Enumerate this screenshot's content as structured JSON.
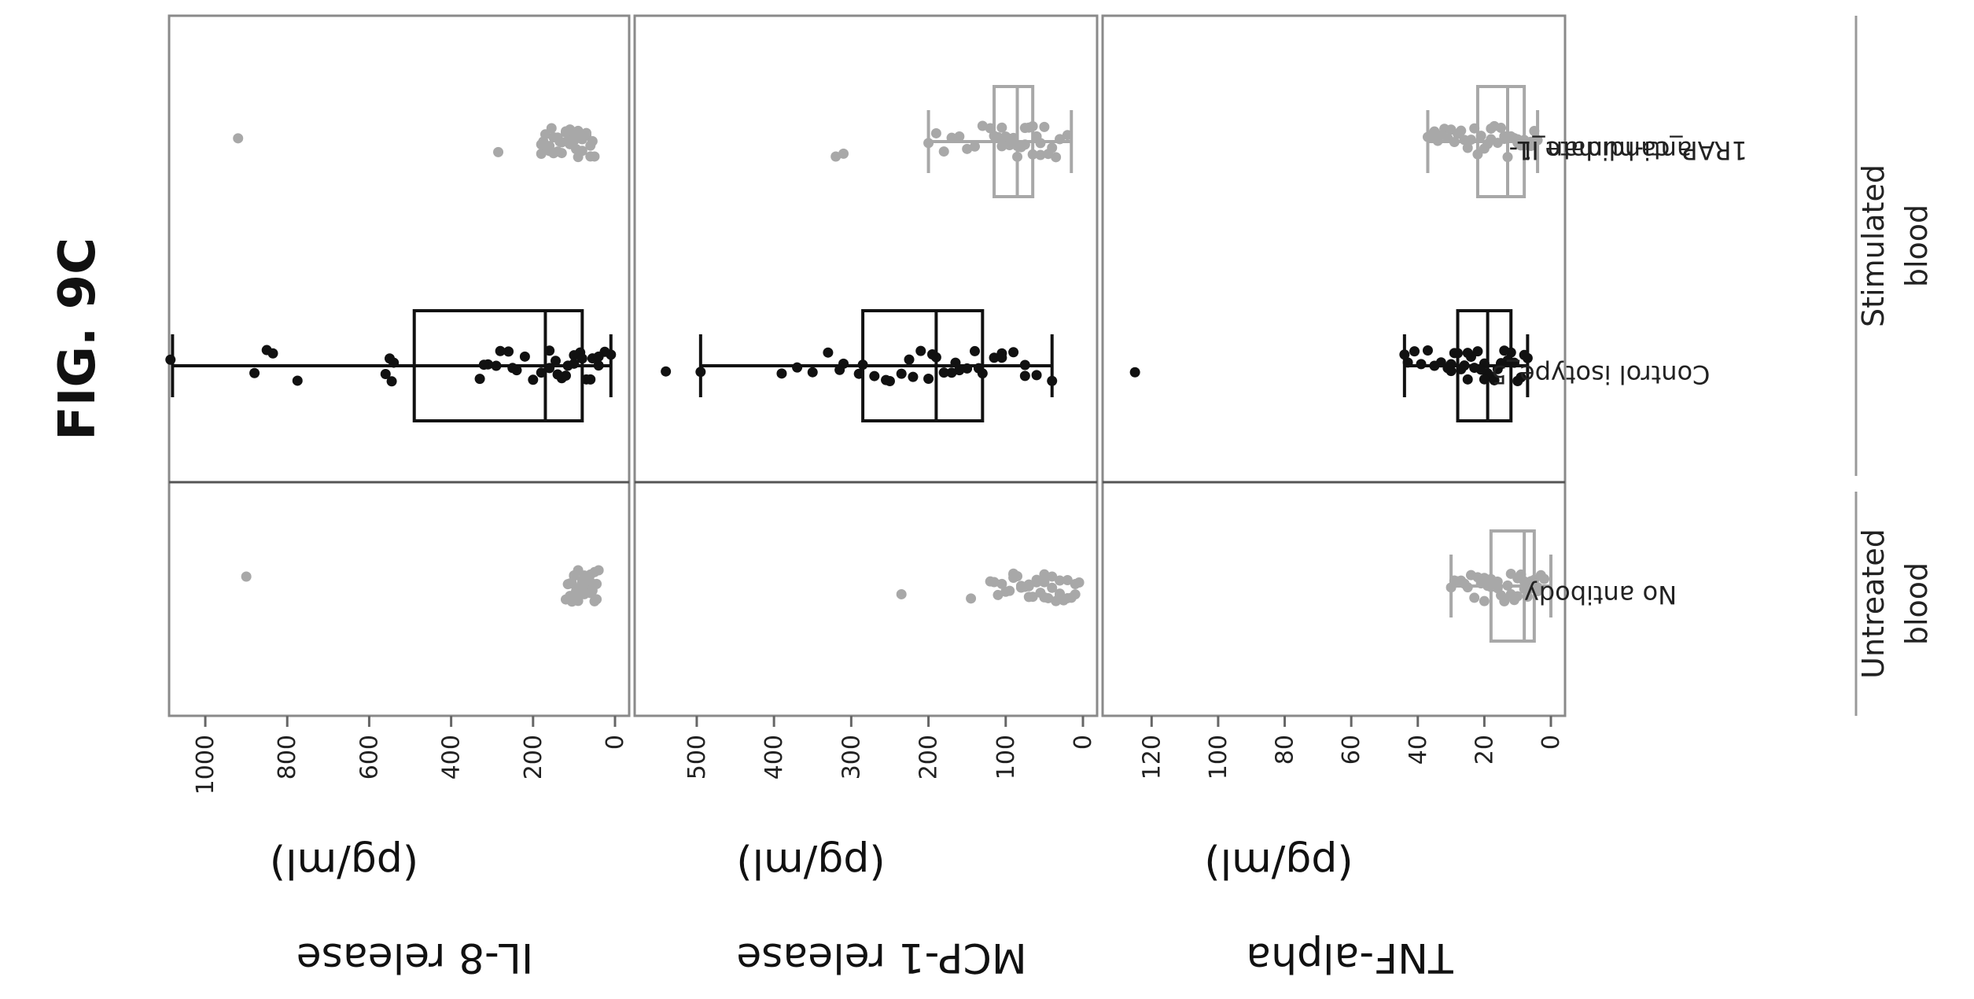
{
  "figure": {
    "title": "FIG. 9C"
  },
  "chart_data": {
    "type": "box",
    "orientation": "rotated",
    "groups": [
      {
        "name": "Untreated blood",
        "categories": [
          "No antibody"
        ]
      },
      {
        "name": "Stimulated blood",
        "categories": [
          "Control isotype_5",
          "anti-human IL-1RAP_candidate_1"
        ]
      }
    ],
    "categories": [
      "No antibody",
      "Control isotype_5",
      "anti-human IL-1RAP_candidate_1"
    ],
    "category_colors": [
      "#a8a8a8",
      "#111111",
      "#a8a8a8"
    ],
    "panels": [
      {
        "ylabel": "IL-8 release",
        "unit": "(pg/ml)",
        "ylim": [
          0,
          1050
        ],
        "ticks": [
          0,
          200,
          400,
          600,
          800,
          1000
        ],
        "series": [
          {
            "category": "No antibody",
            "box": null,
            "points": [
              40,
              45,
              50,
              55,
              60,
              65,
              70,
              75,
              80,
              85,
              90,
              95,
              100,
              105,
              110,
              115,
              120,
              45,
              55,
              65,
              75,
              85,
              95,
              105,
              60,
              70,
              80,
              90,
              100,
              110,
              50,
              60,
              70,
              80,
              900
            ]
          },
          {
            "category": "Control isotype_5",
            "box": {
              "whisker_low": 10,
              "q1": 80,
              "median": 170,
              "q3": 490,
              "whisker_high": 1080
            },
            "points": [
              10,
              25,
              40,
              55,
              70,
              85,
              100,
              115,
              130,
              145,
              160,
              180,
              200,
              220,
              240,
              260,
              280,
              290,
              310,
              320,
              330,
              540,
              545,
              550,
              560,
              775,
              835,
              850,
              880,
              1085,
              40,
              60,
              80,
              100,
              120,
              140,
              160,
              250
            ]
          },
          {
            "category": "anti-human IL-1RAP_candidate_1",
            "box": null,
            "points": [
              50,
              60,
              70,
              80,
              90,
              100,
              110,
              120,
              130,
              140,
              150,
              160,
              170,
              180,
              60,
              80,
              100,
              120,
              140,
              160,
              180,
              70,
              90,
              110,
              130,
              150,
              170,
              55,
              75,
              95,
              115,
              135,
              155,
              175,
              285,
              920
            ]
          }
        ]
      },
      {
        "ylabel": "MCP-1 release",
        "unit": "(pg/ml)",
        "ylim": [
          0,
          560
        ],
        "ticks": [
          0,
          100,
          200,
          300,
          400,
          500
        ],
        "series": [
          {
            "category": "No antibody",
            "box": null,
            "points": [
              5,
              10,
              15,
              20,
              25,
              30,
              35,
              40,
              45,
              50,
              55,
              60,
              65,
              70,
              75,
              80,
              85,
              90,
              95,
              100,
              105,
              110,
              115,
              120,
              10,
              20,
              30,
              40,
              50,
              60,
              70,
              80,
              90,
              30,
              50,
              70,
              90,
              145,
              235
            ]
          },
          {
            "category": "Control isotype_5",
            "box": {
              "whisker_low": 40,
              "q1": 130,
              "median": 190,
              "q3": 285,
              "whisker_high": 495
            },
            "points": [
              40,
              60,
              75,
              90,
              105,
              115,
              130,
              140,
              150,
              160,
              170,
              180,
              190,
              200,
              210,
              220,
              235,
              250,
              270,
              290,
              310,
              330,
              350,
              370,
              390,
              495,
              540,
              75,
              105,
              135,
              165,
              195,
              225,
              255,
              285,
              315
            ]
          },
          {
            "category": "anti-human IL-1RAP_candidate_1",
            "box": {
              "whisker_low": 15,
              "q1": 65,
              "median": 85,
              "q3": 115,
              "whisker_high": 200
            },
            "points": [
              20,
              30,
              40,
              50,
              55,
              60,
              65,
              70,
              75,
              80,
              85,
              90,
              95,
              100,
              105,
              110,
              115,
              120,
              130,
              140,
              150,
              160,
              170,
              180,
              190,
              200,
              35,
              45,
              55,
              65,
              75,
              85,
              95,
              105,
              310,
              320
            ]
          }
        ]
      },
      {
        "ylabel": "TNF-alpha",
        "unit": "(pg/ml)",
        "ylim": [
          0,
          130
        ],
        "ticks": [
          0,
          20,
          40,
          60,
          80,
          100,
          120
        ],
        "series": [
          {
            "category": "No antibody",
            "box": {
              "whisker_low": 0,
              "q1": 5,
              "median": 8,
              "q3": 18,
              "whisker_high": 30
            },
            "points": [
              2,
              3,
              4,
              5,
              6,
              7,
              8,
              9,
              10,
              11,
              12,
              13,
              14,
              15,
              16,
              17,
              18,
              19,
              20,
              21,
              22,
              23,
              24,
              25,
              26,
              27,
              28,
              29,
              30,
              4,
              6,
              8,
              10,
              12,
              14,
              16,
              18,
              20
            ]
          },
          {
            "category": "Control isotype_5",
            "box": {
              "whisker_low": 7,
              "q1": 12,
              "median": 19,
              "q3": 28,
              "whisker_high": 44
            },
            "points": [
              7,
              8,
              9,
              10,
              11,
              12,
              13,
              14,
              15,
              16,
              17,
              18,
              19,
              20,
              21,
              22,
              23,
              24,
              25,
              26,
              27,
              28,
              29,
              30,
              31,
              33,
              35,
              37,
              39,
              41,
              43,
              44,
              10,
              15,
              20,
              25,
              30,
              125
            ]
          },
          {
            "category": "anti-human IL-1RAP_candidate_1",
            "box": {
              "whisker_low": 4,
              "q1": 8,
              "median": 13,
              "q3": 22,
              "whisker_high": 37
            },
            "points": [
              4,
              5,
              6,
              7,
              8,
              9,
              10,
              11,
              12,
              13,
              14,
              15,
              16,
              17,
              18,
              19,
              20,
              21,
              22,
              23,
              24,
              25,
              26,
              27,
              28,
              29,
              30,
              31,
              32,
              33,
              34,
              35,
              36,
              37,
              6,
              10,
              14,
              18
            ]
          }
        ]
      }
    ]
  }
}
